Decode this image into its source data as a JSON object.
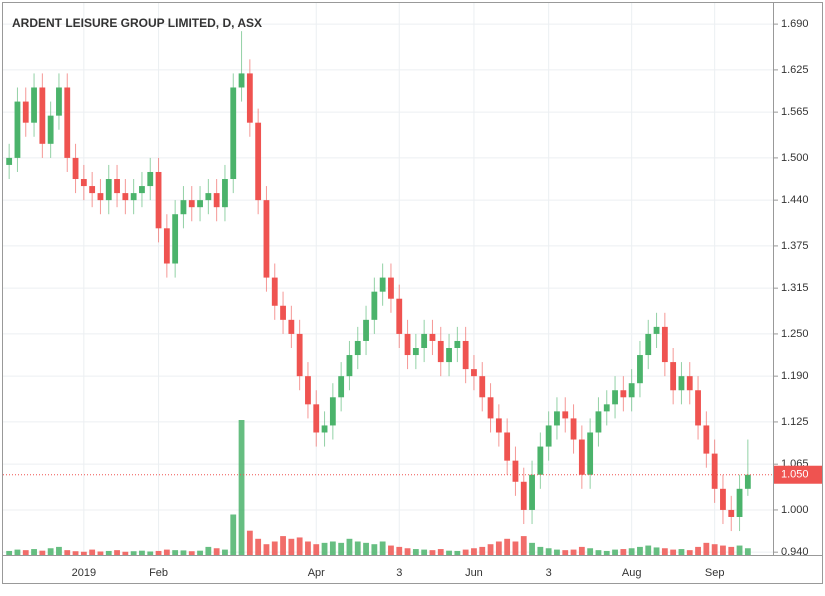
{
  "chart_data": {
    "type": "candlestick",
    "title": "ARDENT LEISURE GROUP LIMITED, D, ASX",
    "categories": [
      null,
      null,
      null,
      null,
      null,
      null,
      null,
      null,
      null,
      "2019",
      null,
      null,
      null,
      null,
      null,
      null,
      null,
      null,
      "Feb",
      null,
      null,
      null,
      null,
      null,
      null,
      null,
      null,
      null,
      null,
      null,
      null,
      null,
      null,
      null,
      null,
      null,
      null,
      "Apr",
      null,
      null,
      null,
      null,
      null,
      null,
      null,
      null,
      null,
      "3",
      null,
      null,
      null,
      null,
      null,
      null,
      null,
      null,
      "Jun",
      null,
      null,
      null,
      null,
      null,
      null,
      null,
      null,
      "3",
      null,
      null,
      null,
      null,
      null,
      null,
      null,
      null,
      null,
      "Aug",
      null,
      null,
      null,
      null,
      null,
      null,
      null,
      null,
      null,
      "Sep",
      null,
      null,
      null,
      null
    ],
    "open": [
      1.49,
      1.5,
      1.58,
      1.55,
      1.6,
      1.52,
      1.56,
      1.6,
      1.5,
      1.47,
      1.46,
      1.45,
      1.44,
      1.47,
      1.45,
      1.44,
      1.45,
      1.46,
      1.48,
      1.4,
      1.35,
      1.42,
      1.44,
      1.43,
      1.44,
      1.45,
      1.43,
      1.47,
      1.6,
      1.62,
      1.55,
      1.44,
      1.33,
      1.29,
      1.27,
      1.25,
      1.19,
      1.15,
      1.11,
      1.12,
      1.16,
      1.19,
      1.22,
      1.24,
      1.27,
      1.31,
      1.33,
      1.3,
      1.25,
      1.22,
      1.23,
      1.25,
      1.24,
      1.21,
      1.23,
      1.24,
      1.2,
      1.19,
      1.16,
      1.13,
      1.11,
      1.07,
      1.04,
      1.0,
      1.05,
      1.09,
      1.12,
      1.14,
      1.13,
      1.1,
      1.05,
      1.11,
      1.14,
      1.15,
      1.17,
      1.16,
      1.18,
      1.22,
      1.25,
      1.26,
      1.21,
      1.17,
      1.19,
      1.17,
      1.12,
      1.08,
      1.03,
      1.0,
      0.99,
      1.03
    ],
    "high": [
      1.52,
      1.6,
      1.6,
      1.62,
      1.62,
      1.58,
      1.62,
      1.62,
      1.52,
      1.49,
      1.48,
      1.47,
      1.49,
      1.49,
      1.47,
      1.47,
      1.48,
      1.5,
      1.5,
      1.42,
      1.44,
      1.46,
      1.46,
      1.46,
      1.47,
      1.47,
      1.49,
      1.62,
      1.68,
      1.64,
      1.57,
      1.46,
      1.35,
      1.31,
      1.29,
      1.27,
      1.21,
      1.17,
      1.14,
      1.18,
      1.21,
      1.24,
      1.26,
      1.29,
      1.33,
      1.35,
      1.35,
      1.32,
      1.27,
      1.25,
      1.27,
      1.27,
      1.26,
      1.25,
      1.26,
      1.26,
      1.22,
      1.21,
      1.18,
      1.15,
      1.13,
      1.09,
      1.06,
      1.07,
      1.11,
      1.14,
      1.16,
      1.16,
      1.15,
      1.12,
      1.13,
      1.16,
      1.17,
      1.19,
      1.19,
      1.2,
      1.24,
      1.27,
      1.28,
      1.28,
      1.23,
      1.21,
      1.21,
      1.19,
      1.14,
      1.1,
      1.05,
      1.02,
      1.05,
      1.1
    ],
    "low": [
      1.47,
      1.48,
      1.53,
      1.53,
      1.5,
      1.5,
      1.54,
      1.48,
      1.45,
      1.44,
      1.43,
      1.42,
      1.42,
      1.43,
      1.42,
      1.42,
      1.43,
      1.44,
      1.38,
      1.33,
      1.33,
      1.4,
      1.41,
      1.41,
      1.42,
      1.41,
      1.41,
      1.45,
      1.58,
      1.53,
      1.42,
      1.31,
      1.27,
      1.25,
      1.23,
      1.17,
      1.13,
      1.09,
      1.09,
      1.1,
      1.14,
      1.17,
      1.2,
      1.22,
      1.25,
      1.29,
      1.28,
      1.23,
      1.2,
      1.2,
      1.21,
      1.22,
      1.19,
      1.19,
      1.21,
      1.18,
      1.17,
      1.14,
      1.11,
      1.09,
      1.05,
      1.02,
      0.98,
      0.98,
      1.03,
      1.07,
      1.1,
      1.11,
      1.08,
      1.03,
      1.03,
      1.09,
      1.12,
      1.13,
      1.14,
      1.14,
      1.16,
      1.2,
      1.23,
      1.19,
      1.15,
      1.15,
      1.15,
      1.1,
      1.06,
      1.01,
      0.98,
      0.97,
      0.97,
      1.02
    ],
    "close": [
      1.5,
      1.58,
      1.55,
      1.6,
      1.52,
      1.56,
      1.6,
      1.5,
      1.47,
      1.46,
      1.45,
      1.44,
      1.47,
      1.45,
      1.44,
      1.45,
      1.46,
      1.48,
      1.4,
      1.35,
      1.42,
      1.44,
      1.43,
      1.44,
      1.45,
      1.43,
      1.47,
      1.6,
      1.62,
      1.55,
      1.44,
      1.33,
      1.29,
      1.27,
      1.25,
      1.19,
      1.15,
      1.11,
      1.12,
      1.16,
      1.19,
      1.22,
      1.24,
      1.27,
      1.31,
      1.33,
      1.3,
      1.25,
      1.22,
      1.23,
      1.25,
      1.24,
      1.21,
      1.23,
      1.24,
      1.2,
      1.19,
      1.16,
      1.13,
      1.11,
      1.07,
      1.04,
      1.0,
      1.05,
      1.09,
      1.12,
      1.14,
      1.13,
      1.1,
      1.05,
      1.11,
      1.14,
      1.15,
      1.17,
      1.16,
      1.18,
      1.22,
      1.25,
      1.26,
      1.21,
      1.17,
      1.19,
      1.17,
      1.12,
      1.08,
      1.03,
      1.0,
      0.99,
      1.03,
      1.05
    ],
    "volume": [
      150,
      200,
      180,
      220,
      160,
      250,
      300,
      180,
      140,
      120,
      200,
      130,
      150,
      180,
      120,
      140,
      160,
      130,
      150,
      200,
      180,
      170,
      140,
      160,
      300,
      250,
      200,
      1500,
      5000,
      900,
      600,
      400,
      500,
      700,
      600,
      650,
      500,
      400,
      450,
      500,
      450,
      600,
      500,
      450,
      400,
      500,
      350,
      300,
      250,
      220,
      200,
      180,
      220,
      160,
      150,
      200,
      250,
      300,
      400,
      500,
      600,
      500,
      700,
      450,
      300,
      250,
      200,
      180,
      200,
      300,
      250,
      180,
      150,
      200,
      220,
      250,
      300,
      350,
      280,
      250,
      200,
      220,
      180,
      300,
      450,
      400,
      350,
      300,
      350,
      250
    ],
    "up_color": "#4bb36b",
    "down_color": "#ef5350",
    "ylim": [
      0.936,
      1.72
    ],
    "yticks": [
      {
        "value": 0.94,
        "label": "0.940"
      },
      {
        "value": 1.0,
        "label": "1.000"
      },
      {
        "value": 1.065,
        "label": "1.065"
      },
      {
        "value": 1.125,
        "label": "1.125"
      },
      {
        "value": 1.19,
        "label": "1.190"
      },
      {
        "value": 1.25,
        "label": "1.250"
      },
      {
        "value": 1.315,
        "label": "1.315"
      },
      {
        "value": 1.375,
        "label": "1.375"
      },
      {
        "value": 1.44,
        "label": "1.440"
      },
      {
        "value": 1.5,
        "label": "1.500"
      },
      {
        "value": 1.565,
        "label": "1.565"
      },
      {
        "value": 1.625,
        "label": "1.625"
      },
      {
        "value": 1.69,
        "label": "1.690"
      }
    ],
    "last_price": {
      "value": 1.05,
      "label": "1.050"
    },
    "grid": true
  }
}
